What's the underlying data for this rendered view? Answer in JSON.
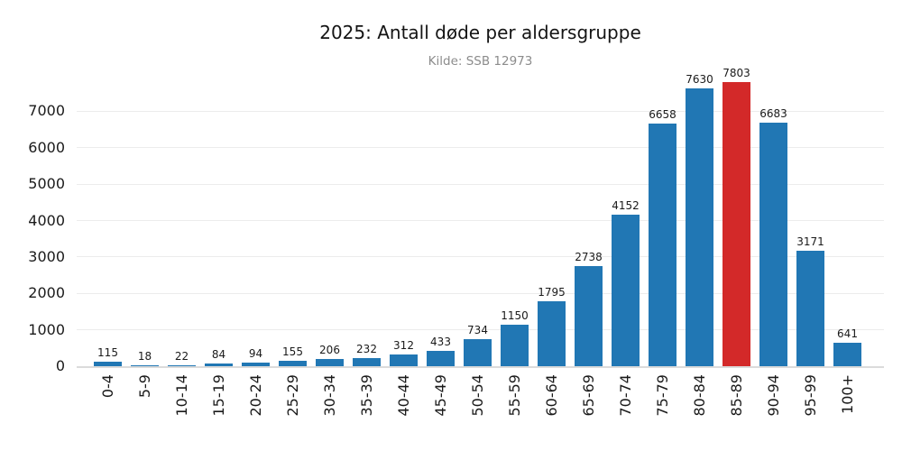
{
  "chart_data": {
    "type": "bar",
    "title": "2025: Antall døde per aldersgruppe",
    "subtitle": "Kilde: SSB 12973",
    "categories": [
      "0-4",
      "5-9",
      "10-14",
      "15-19",
      "20-24",
      "25-29",
      "30-34",
      "35-39",
      "40-44",
      "45-49",
      "50-54",
      "55-59",
      "60-64",
      "65-69",
      "70-74",
      "75-79",
      "80-84",
      "85-89",
      "90-94",
      "95-99",
      "100+"
    ],
    "values": [
      115,
      18,
      22,
      84,
      94,
      155,
      206,
      232,
      312,
      433,
      734,
      1150,
      1795,
      2738,
      4152,
      6658,
      7630,
      7803,
      6683,
      3171,
      641
    ],
    "highlight_index": 17,
    "highlight_category": "85-89",
    "bar_color": "#2177b4",
    "highlight_color": "#d32929",
    "grid_color": "#ececec",
    "yticks": [
      0,
      1000,
      2000,
      3000,
      4000,
      5000,
      6000,
      7000
    ],
    "ylim": [
      0,
      8200
    ],
    "xlabel": "",
    "ylabel": "",
    "legend": "none",
    "grid": "horizontal",
    "value_labels": "above-bars"
  }
}
